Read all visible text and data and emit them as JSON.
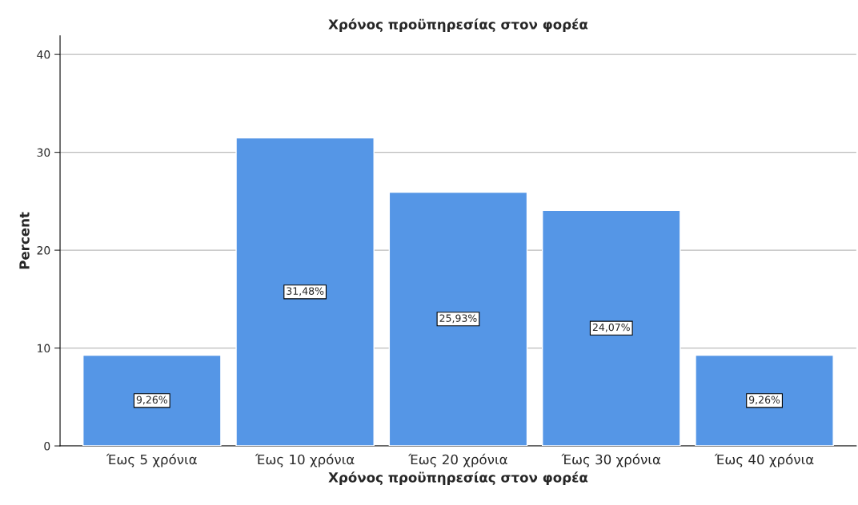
{
  "chart_data": {
    "type": "bar",
    "title": "Χρόνος προϋπηρεσίας στον φορέα",
    "xlabel": "Χρόνος προϋπηρεσίας στον φορέα",
    "ylabel": "Percent",
    "categories": [
      "Έως 5 χρόνια",
      "Έως 10 χρόνια",
      "Έως 20 χρόνια",
      "Έως 30 χρόνια",
      "Έως 40 χρόνια"
    ],
    "values": [
      9.26,
      31.48,
      25.93,
      24.07,
      9.26
    ],
    "value_labels": [
      "9,26%",
      "31,48%",
      "25,93%",
      "24,07%",
      "9,26%"
    ],
    "color": "#5596e6",
    "ylim": [
      0,
      41.9
    ],
    "yticks": [
      0,
      10,
      20,
      30,
      40
    ],
    "grid": "y"
  }
}
